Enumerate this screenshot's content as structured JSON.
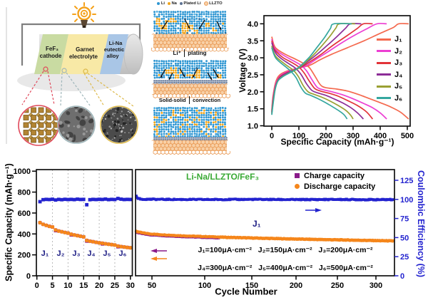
{
  "battery_panel": {
    "sections": [
      {
        "label_lines": [
          "FeF₃",
          "cathode"
        ],
        "color": "#c9dba2"
      },
      {
        "label_lines": [
          "Garnet",
          "electrolyte"
        ],
        "color": "#f8e9a6"
      },
      {
        "label_lines": [
          "Li-Na",
          "eutectic",
          "alloy"
        ],
        "color": "#a9c6e6"
      }
    ],
    "insets": [
      {
        "name": "fef3-crystal",
        "ring_color": "#e0485a"
      },
      {
        "name": "garnet-sem",
        "ring_color": "#9fb6ba"
      },
      {
        "name": "alloy-sem",
        "ring_color": "#ddb94a"
      }
    ],
    "wire_color": "#7f7f7f",
    "bulb_color": "#f5a11a"
  },
  "schematic_panel": {
    "legend": [
      {
        "label": "Li",
        "color": "#2e96d2"
      },
      {
        "label": "Na",
        "color": "#f0a51c"
      },
      {
        "label": "Plated Li",
        "color": "#5d7292"
      },
      {
        "label": "LLZTO",
        "color": "#f8d0a6"
      }
    ],
    "captions": [
      {
        "left": "Li⁺",
        "right": "plating"
      },
      {
        "left": "Solid-solid",
        "right": "convection"
      }
    ]
  },
  "chart_data": [
    {
      "type": "line",
      "title": "",
      "xlabel": "Specific Capacity (mAh·g⁻¹)",
      "ylabel": "Voltage (V)",
      "xlim": [
        0,
        510
      ],
      "ylim": [
        1.0,
        4.25
      ],
      "xticks": [
        0,
        100,
        200,
        300,
        400,
        500
      ],
      "yticks": [
        1.0,
        1.5,
        2.0,
        2.5,
        3.0,
        3.5,
        4.0
      ],
      "grid": false,
      "legend_position": "right-inside",
      "series": [
        {
          "name": "J₁",
          "color": "#f4694e",
          "discharge": [
            [
              0,
              3.62
            ],
            [
              8,
              3.38
            ],
            [
              20,
              3.25
            ],
            [
              50,
              3.1
            ],
            [
              90,
              2.95
            ],
            [
              120,
              2.82
            ],
            [
              140,
              2.7
            ],
            [
              160,
              2.45
            ],
            [
              180,
              2.2
            ],
            [
              200,
              2.12
            ],
            [
              240,
              2.08
            ],
            [
              280,
              2.02
            ],
            [
              320,
              1.92
            ],
            [
              360,
              1.8
            ],
            [
              400,
              1.68
            ],
            [
              440,
              1.55
            ],
            [
              475,
              1.4
            ],
            [
              505,
              1.2
            ]
          ],
          "charge": [
            [
              0,
              1.45
            ],
            [
              5,
              1.9
            ],
            [
              15,
              2.3
            ],
            [
              30,
              2.5
            ],
            [
              60,
              2.62
            ],
            [
              100,
              2.7
            ],
            [
              140,
              2.78
            ],
            [
              180,
              2.95
            ],
            [
              220,
              3.1
            ],
            [
              280,
              3.3
            ],
            [
              340,
              3.5
            ],
            [
              400,
              3.72
            ],
            [
              450,
              3.9
            ],
            [
              468,
              4.0
            ],
            [
              505,
              4.0
            ]
          ]
        },
        {
          "name": "J₂",
          "color": "#ec3fd3",
          "discharge": [
            [
              0,
              3.55
            ],
            [
              8,
              3.32
            ],
            [
              20,
              3.2
            ],
            [
              46,
              3.06
            ],
            [
              80,
              2.91
            ],
            [
              108,
              2.78
            ],
            [
              128,
              2.62
            ],
            [
              148,
              2.36
            ],
            [
              168,
              2.13
            ],
            [
              190,
              2.06
            ],
            [
              222,
              2.0
            ],
            [
              258,
              1.92
            ],
            [
              298,
              1.8
            ],
            [
              338,
              1.66
            ],
            [
              372,
              1.53
            ],
            [
              400,
              1.38
            ],
            [
              424,
              1.2
            ]
          ],
          "charge": [
            [
              0,
              1.42
            ],
            [
              5,
              1.85
            ],
            [
              15,
              2.25
            ],
            [
              30,
              2.46
            ],
            [
              56,
              2.59
            ],
            [
              92,
              2.68
            ],
            [
              128,
              2.77
            ],
            [
              164,
              2.96
            ],
            [
              204,
              3.16
            ],
            [
              252,
              3.41
            ],
            [
              300,
              3.64
            ],
            [
              352,
              3.86
            ],
            [
              388,
              4.0
            ],
            [
              424,
              4.0
            ]
          ]
        },
        {
          "name": "J₃",
          "color": "#e23338",
          "discharge": [
            [
              0,
              3.5
            ],
            [
              8,
              3.28
            ],
            [
              20,
              3.15
            ],
            [
              42,
              3.0
            ],
            [
              72,
              2.87
            ],
            [
              98,
              2.74
            ],
            [
              118,
              2.57
            ],
            [
              138,
              2.32
            ],
            [
              158,
              2.1
            ],
            [
              180,
              2.02
            ],
            [
              210,
              1.96
            ],
            [
              245,
              1.87
            ],
            [
              280,
              1.74
            ],
            [
              315,
              1.6
            ],
            [
              348,
              1.42
            ],
            [
              372,
              1.2
            ]
          ],
          "charge": [
            [
              0,
              1.4
            ],
            [
              5,
              1.8
            ],
            [
              15,
              2.2
            ],
            [
              28,
              2.42
            ],
            [
              52,
              2.55
            ],
            [
              82,
              2.64
            ],
            [
              112,
              2.74
            ],
            [
              148,
              2.92
            ],
            [
              185,
              3.12
            ],
            [
              228,
              3.38
            ],
            [
              272,
              3.62
            ],
            [
              315,
              3.86
            ],
            [
              338,
              4.0
            ],
            [
              372,
              4.0
            ]
          ]
        },
        {
          "name": "J₄",
          "color": "#8c2d97",
          "discharge": [
            [
              0,
              3.45
            ],
            [
              8,
              3.24
            ],
            [
              18,
              3.1
            ],
            [
              36,
              2.97
            ],
            [
              62,
              2.83
            ],
            [
              88,
              2.69
            ],
            [
              108,
              2.51
            ],
            [
              128,
              2.24
            ],
            [
              148,
              2.04
            ],
            [
              168,
              1.97
            ],
            [
              198,
              1.9
            ],
            [
              230,
              1.79
            ],
            [
              262,
              1.67
            ],
            [
              292,
              1.53
            ],
            [
              316,
              1.38
            ],
            [
              338,
              1.2
            ]
          ],
          "charge": [
            [
              0,
              1.38
            ],
            [
              5,
              1.75
            ],
            [
              14,
              2.15
            ],
            [
              26,
              2.38
            ],
            [
              46,
              2.51
            ],
            [
              74,
              2.61
            ],
            [
              102,
              2.71
            ],
            [
              133,
              2.89
            ],
            [
              168,
              3.11
            ],
            [
              204,
              3.36
            ],
            [
              240,
              3.62
            ],
            [
              272,
              3.87
            ],
            [
              290,
              4.0
            ],
            [
              330,
              4.0
            ]
          ]
        },
        {
          "name": "J₅",
          "color": "#9aa033",
          "discharge": [
            [
              0,
              3.35
            ],
            [
              7,
              3.16
            ],
            [
              16,
              3.03
            ],
            [
              33,
              2.91
            ],
            [
              56,
              2.77
            ],
            [
              80,
              2.63
            ],
            [
              98,
              2.45
            ],
            [
              116,
              2.18
            ],
            [
              134,
              2.0
            ],
            [
              154,
              1.93
            ],
            [
              182,
              1.85
            ],
            [
              212,
              1.74
            ],
            [
              242,
              1.61
            ],
            [
              272,
              1.46
            ],
            [
              290,
              1.32
            ],
            [
              300,
              1.2
            ]
          ],
          "charge": [
            [
              0,
              1.35
            ],
            [
              5,
              1.7
            ],
            [
              13,
              2.1
            ],
            [
              24,
              2.34
            ],
            [
              44,
              2.47
            ],
            [
              68,
              2.57
            ],
            [
              94,
              2.67
            ],
            [
              122,
              2.85
            ],
            [
              152,
              3.07
            ],
            [
              182,
              3.33
            ],
            [
              212,
              3.61
            ],
            [
              236,
              3.87
            ],
            [
              250,
              4.0
            ],
            [
              308,
              4.0
            ]
          ]
        },
        {
          "name": "J₆",
          "color": "#35a79f",
          "discharge": [
            [
              0,
              3.3
            ],
            [
              7,
              3.12
            ],
            [
              15,
              2.99
            ],
            [
              30,
              2.87
            ],
            [
              52,
              2.73
            ],
            [
              72,
              2.59
            ],
            [
              90,
              2.41
            ],
            [
              107,
              2.14
            ],
            [
              124,
              1.96
            ],
            [
              142,
              1.9
            ],
            [
              167,
              1.81
            ],
            [
              194,
              1.7
            ],
            [
              222,
              1.57
            ],
            [
              250,
              1.43
            ],
            [
              266,
              1.33
            ],
            [
              278,
              1.2
            ]
          ],
          "charge": [
            [
              0,
              1.32
            ],
            [
              5,
              1.65
            ],
            [
              12,
              2.05
            ],
            [
              22,
              2.31
            ],
            [
              40,
              2.44
            ],
            [
              62,
              2.54
            ],
            [
              86,
              2.64
            ],
            [
              112,
              2.81
            ],
            [
              140,
              3.03
            ],
            [
              167,
              3.31
            ],
            [
              194,
              3.59
            ],
            [
              216,
              3.86
            ],
            [
              229,
              4.0
            ],
            [
              295,
              4.0
            ]
          ]
        }
      ]
    },
    {
      "type": "scatter",
      "title": "Li-Na/LLZTO/FeF₃",
      "xlabel": "Cycle Number",
      "ylabel_left": "Specific Capacity (mAh·g⁻¹)",
      "ylabel_right": "Coulombic Efficiency (%)",
      "left_ylim": [
        0,
        1013
      ],
      "left_yticks": [
        0,
        200,
        400,
        600,
        800,
        1000
      ],
      "right_ylim": [
        0,
        139
      ],
      "right_yticks": [
        0,
        25,
        50,
        75,
        100,
        125
      ],
      "colors": {
        "charge": "#8a1b8a",
        "discharge": "#f5861b",
        "ce": "#2323cf"
      },
      "legend": [
        {
          "label": "Charge capacity",
          "marker": "square",
          "color": "#8a1b8a"
        },
        {
          "label": "Discharge capacity",
          "marker": "circle",
          "color": "#f5861b"
        }
      ],
      "annotations": [
        "J₁=100μA·cm⁻²   J₂=150μA·cm⁻²   J₃=200μA·cm⁻²",
        "J₄=300μA·cm⁻²   J₅=400μA·cm⁻²   J₆=500μA·cm⁻²"
      ],
      "panel1": {
        "xticks": [
          0,
          5,
          10,
          15,
          20,
          25,
          30
        ],
        "gridlines": [
          5,
          10,
          15,
          20,
          25
        ],
        "segment_labels": [
          "J₁",
          "J₂",
          "J₃",
          "J₄",
          "J₅",
          "J₆"
        ],
        "cycles_start": 1,
        "discharge": [
          508,
          492,
          482,
          473,
          466,
          438,
          428,
          421,
          414,
          408,
          397,
          390,
          384,
          378,
          372,
          338,
          331,
          326,
          320,
          315,
          311,
          306,
          302,
          298,
          294,
          284,
          279,
          275,
          271,
          268
        ],
        "ce": [
          97,
          99.6,
          100,
          99.8,
          100.2,
          99.2,
          100,
          99.6,
          100.1,
          99.8,
          100,
          99.7,
          100.3,
          99.9,
          100,
          93,
          99.6,
          100,
          99.8,
          100.1,
          99.9,
          100.4,
          99.7,
          100,
          99.8,
          101.2,
          100.3,
          99.8,
          100,
          99.9
        ],
        "charge_visible_cycles": [
          6,
          11,
          16,
          21,
          26
        ],
        "charge_offset": -7
      },
      "panel2": {
        "xticks": [
          50,
          100,
          150,
          200,
          250,
          300
        ],
        "label": "J₁",
        "discharge_anchors": [
          [
            31,
            424
          ],
          [
            38,
            410
          ],
          [
            48,
            399
          ],
          [
            62,
            390
          ],
          [
            80,
            381
          ],
          [
            100,
            374
          ],
          [
            125,
            367
          ],
          [
            155,
            360
          ],
          [
            190,
            353
          ],
          [
            225,
            347
          ],
          [
            260,
            342
          ],
          [
            295,
            337
          ],
          [
            324,
            333
          ]
        ],
        "ce_anchors": [
          [
            31,
            104
          ],
          [
            33,
            101.5
          ],
          [
            36,
            100.3
          ],
          [
            60,
            100
          ],
          [
            100,
            99.8
          ],
          [
            150,
            100
          ],
          [
            200,
            99.7
          ],
          [
            250,
            99.9
          ],
          [
            300,
            99.6
          ],
          [
            324,
            99.8
          ]
        ],
        "charge_visible_until": 115,
        "charge_offset": -8
      }
    }
  ]
}
